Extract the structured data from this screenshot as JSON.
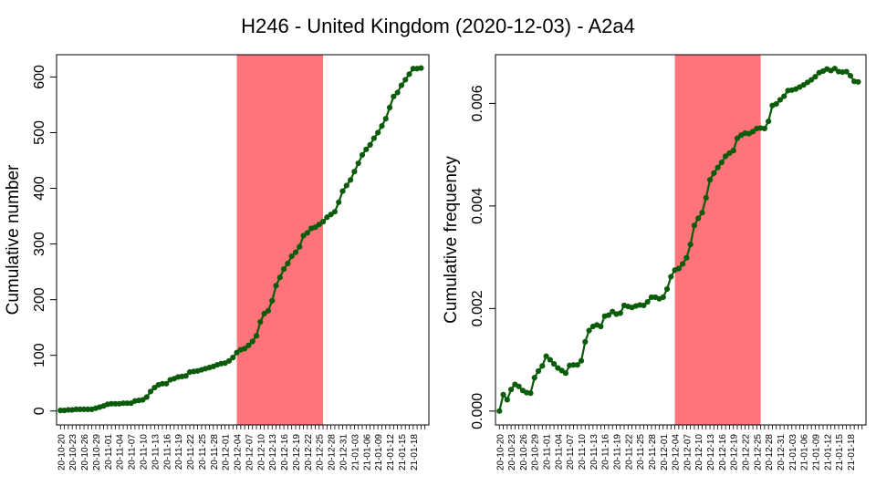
{
  "title": "H246 - United Kingdom (2020-12-03) - A2a4",
  "colors": {
    "line": "#0a5c0a",
    "point": "#0a5c0a",
    "highlight": "#ff737a",
    "axis": "#000000"
  },
  "x_tick_labels": [
    "20-10-20",
    "20-10-23",
    "20-10-26",
    "20-10-29",
    "20-11-01",
    "20-11-04",
    "20-11-07",
    "20-11-10",
    "20-11-13",
    "20-11-16",
    "20-11-19",
    "20-11-22",
    "20-11-25",
    "20-11-28",
    "20-12-01",
    "20-12-04",
    "20-12-07",
    "20-12-10",
    "20-12-13",
    "20-12-16",
    "20-12-19",
    "20-12-22",
    "20-12-25",
    "20-12-28",
    "20-12-31",
    "21-01-03",
    "21-01-06",
    "21-01-09",
    "21-01-12",
    "21-01-15",
    "21-01-18"
  ],
  "chart_data": [
    {
      "type": "line",
      "ylabel": "Cumulative number",
      "y_ticks": [
        "0",
        "100",
        "200",
        "300",
        "400",
        "500",
        "600"
      ],
      "ylim": [
        -25,
        640
      ],
      "xlim": [
        "2020-10-19",
        "2021-01-22"
      ],
      "highlight": {
        "start": "2020-12-04",
        "end": "2020-12-26"
      },
      "x": [
        "2020-10-20",
        "2020-10-21",
        "2020-10-22",
        "2020-10-23",
        "2020-10-24",
        "2020-10-25",
        "2020-10-26",
        "2020-10-27",
        "2020-10-28",
        "2020-10-29",
        "2020-10-30",
        "2020-10-31",
        "2020-11-01",
        "2020-11-02",
        "2020-11-03",
        "2020-11-04",
        "2020-11-05",
        "2020-11-06",
        "2020-11-07",
        "2020-11-08",
        "2020-11-09",
        "2020-11-10",
        "2020-11-11",
        "2020-11-12",
        "2020-11-13",
        "2020-11-14",
        "2020-11-15",
        "2020-11-16",
        "2020-11-17",
        "2020-11-18",
        "2020-11-19",
        "2020-11-20",
        "2020-11-21",
        "2020-11-22",
        "2020-11-23",
        "2020-11-24",
        "2020-11-25",
        "2020-11-26",
        "2020-11-27",
        "2020-11-28",
        "2020-11-29",
        "2020-11-30",
        "2020-12-01",
        "2020-12-02",
        "2020-12-03",
        "2020-12-04",
        "2020-12-05",
        "2020-12-06",
        "2020-12-07",
        "2020-12-08",
        "2020-12-09",
        "2020-12-10",
        "2020-12-11",
        "2020-12-12",
        "2020-12-13",
        "2020-12-14",
        "2020-12-15",
        "2020-12-16",
        "2020-12-17",
        "2020-12-18",
        "2020-12-19",
        "2020-12-20",
        "2020-12-21",
        "2020-12-22",
        "2020-12-23",
        "2020-12-24",
        "2020-12-25",
        "2020-12-26",
        "2020-12-27",
        "2020-12-28",
        "2020-12-29",
        "2020-12-30",
        "2020-12-31",
        "2021-01-01",
        "2021-01-02",
        "2021-01-03",
        "2021-01-04",
        "2021-01-05",
        "2021-01-06",
        "2021-01-07",
        "2021-01-08",
        "2021-01-09",
        "2021-01-10",
        "2021-01-11",
        "2021-01-12",
        "2021-01-13",
        "2021-01-14",
        "2021-01-15",
        "2021-01-16",
        "2021-01-17",
        "2021-01-18",
        "2021-01-19",
        "2021-01-20"
      ],
      "y": [
        1,
        1,
        2,
        2,
        3,
        3,
        3,
        3,
        3,
        5,
        7,
        9,
        12,
        13,
        13,
        13,
        14,
        14,
        14,
        18,
        19,
        20,
        25,
        35,
        42,
        47,
        49,
        49,
        56,
        58,
        61,
        62,
        63,
        70,
        71,
        72,
        74,
        76,
        78,
        80,
        83,
        85,
        86,
        90,
        96,
        105,
        110,
        112,
        118,
        125,
        135,
        160,
        175,
        180,
        198,
        225,
        240,
        255,
        265,
        278,
        285,
        295,
        315,
        320,
        328,
        330,
        335,
        340,
        348,
        353,
        358,
        375,
        395,
        405,
        415,
        430,
        445,
        460,
        470,
        478,
        490,
        500,
        512,
        525,
        545,
        565,
        572,
        585,
        595,
        605,
        615,
        615,
        616
      ]
    },
    {
      "type": "line",
      "ylabel": "Cumulative frequency",
      "y_ticks": [
        "0.000",
        "0.002",
        "0.004",
        "0.006"
      ],
      "ylim": [
        -0.00027,
        0.00695
      ],
      "xlim": [
        "2020-10-19",
        "2021-01-22"
      ],
      "highlight": {
        "start": "2020-12-04",
        "end": "2020-12-26"
      },
      "x": [
        "2020-10-20",
        "2020-10-21",
        "2020-10-22",
        "2020-10-23",
        "2020-10-24",
        "2020-10-25",
        "2020-10-26",
        "2020-10-27",
        "2020-10-28",
        "2020-10-29",
        "2020-10-30",
        "2020-10-31",
        "2020-11-01",
        "2020-11-02",
        "2020-11-03",
        "2020-11-04",
        "2020-11-05",
        "2020-11-06",
        "2020-11-07",
        "2020-11-08",
        "2020-11-09",
        "2020-11-10",
        "2020-11-11",
        "2020-11-12",
        "2020-11-13",
        "2020-11-14",
        "2020-11-15",
        "2020-11-16",
        "2020-11-17",
        "2020-11-18",
        "2020-11-19",
        "2020-11-20",
        "2020-11-21",
        "2020-11-22",
        "2020-11-23",
        "2020-11-24",
        "2020-11-25",
        "2020-11-26",
        "2020-11-27",
        "2020-11-28",
        "2020-11-29",
        "2020-11-30",
        "2020-12-01",
        "2020-12-02",
        "2020-12-03",
        "2020-12-04",
        "2020-12-05",
        "2020-12-06",
        "2020-12-07",
        "2020-12-08",
        "2020-12-09",
        "2020-12-10",
        "2020-12-11",
        "2020-12-12",
        "2020-12-13",
        "2020-12-14",
        "2020-12-15",
        "2020-12-16",
        "2020-12-17",
        "2020-12-18",
        "2020-12-19",
        "2020-12-20",
        "2020-12-21",
        "2020-12-22",
        "2020-12-23",
        "2020-12-24",
        "2020-12-25",
        "2020-12-26",
        "2020-12-27",
        "2020-12-28",
        "2020-12-29",
        "2020-12-30",
        "2020-12-31",
        "2021-01-01",
        "2021-01-02",
        "2021-01-03",
        "2021-01-04",
        "2021-01-05",
        "2021-01-06",
        "2021-01-07",
        "2021-01-08",
        "2021-01-09",
        "2021-01-10",
        "2021-01-11",
        "2021-01-12",
        "2021-01-13",
        "2021-01-14",
        "2021-01-15",
        "2021-01-16",
        "2021-01-17",
        "2021-01-18",
        "2021-01-19",
        "2021-01-20"
      ],
      "y": [
        0.0,
        0.00032,
        0.00022,
        0.00042,
        0.00052,
        0.00048,
        0.0004,
        0.00036,
        0.00035,
        0.00065,
        0.00078,
        0.00088,
        0.00107,
        0.001,
        0.00092,
        0.00084,
        0.00079,
        0.00074,
        0.00089,
        0.0009,
        0.0009,
        0.00098,
        0.00135,
        0.00157,
        0.00165,
        0.00168,
        0.00165,
        0.00185,
        0.00187,
        0.00194,
        0.00189,
        0.00191,
        0.00206,
        0.00204,
        0.00202,
        0.00205,
        0.00207,
        0.00206,
        0.00213,
        0.00222,
        0.00222,
        0.00219,
        0.00222,
        0.00238,
        0.00262,
        0.00275,
        0.00278,
        0.00287,
        0.00299,
        0.00325,
        0.00362,
        0.00376,
        0.00387,
        0.00416,
        0.00451,
        0.00464,
        0.00475,
        0.00485,
        0.00497,
        0.00503,
        0.00508,
        0.00532,
        0.00538,
        0.00542,
        0.00541,
        0.00545,
        0.00551,
        0.00552,
        0.00551,
        0.00565,
        0.00596,
        0.00599,
        0.00607,
        0.00614,
        0.00625,
        0.00626,
        0.00628,
        0.00632,
        0.00636,
        0.00641,
        0.00646,
        0.00652,
        0.0066,
        0.00663,
        0.00667,
        0.00664,
        0.00668,
        0.00662,
        0.00661,
        0.00662,
        0.00654,
        0.00643,
        0.00642
      ]
    }
  ]
}
